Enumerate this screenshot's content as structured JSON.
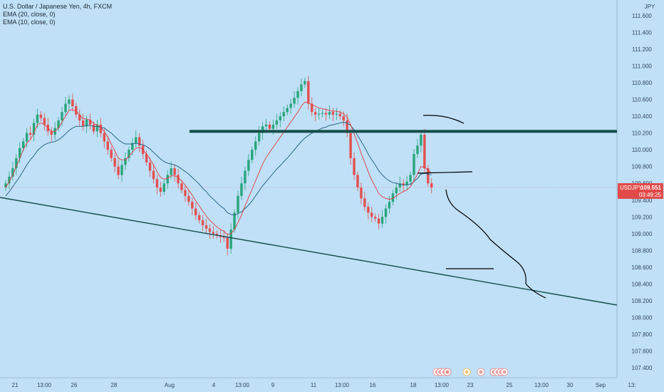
{
  "chart_data": {
    "type": "candlestick",
    "symbol_title": "U.S. Dollar / Japanese Yen, 4h, FXCM",
    "indicators": [
      "EMA (20, close, 0)",
      "EMA (10, close, 0)"
    ],
    "currency": "JPY",
    "ylim": [
      107.3,
      111.72
    ],
    "y_ticks": [
      "111.600",
      "111.400",
      "111.200",
      "111.000",
      "110.800",
      "110.600",
      "110.400",
      "110.200",
      "110.000",
      "109.800",
      "109.600",
      "109.400",
      "109.200",
      "109.000",
      "108.800",
      "108.600",
      "108.400",
      "108.200",
      "108.000",
      "107.800",
      "107.600",
      "107.400"
    ],
    "x_tick_labels": [
      "21",
      "13:00",
      "26",
      "28",
      "Aug",
      "4",
      "13:00",
      "9",
      "11",
      "13:00",
      "16",
      "18",
      "13:00",
      "23",
      "25",
      "13:00",
      "30",
      "Sep",
      "13:"
    ],
    "last_price": {
      "symbol": "USDJPY",
      "value": "109.551",
      "countdown": "03:49:25",
      "price": 109.551
    },
    "candles_close": [
      109.6,
      109.68,
      109.78,
      109.9,
      110.02,
      110.1,
      110.2,
      110.18,
      110.32,
      110.42,
      110.38,
      110.3,
      110.22,
      110.18,
      110.26,
      110.35,
      110.45,
      110.55,
      110.6,
      110.52,
      110.42,
      110.35,
      110.28,
      110.36,
      110.3,
      110.22,
      110.3,
      110.2,
      110.1,
      110.0,
      109.9,
      109.8,
      109.7,
      109.82,
      109.9,
      110.0,
      110.08,
      110.15,
      110.05,
      109.95,
      109.85,
      109.75,
      109.65,
      109.55,
      109.5,
      109.6,
      109.7,
      109.78,
      109.7,
      109.6,
      109.52,
      109.45,
      109.38,
      109.3,
      109.22,
      109.16,
      109.1,
      109.06,
      109.02,
      109.0,
      108.98,
      108.96,
      108.95,
      108.82,
      109.05,
      109.25,
      109.45,
      109.6,
      109.75,
      109.88,
      110.0,
      110.1,
      110.2,
      110.28,
      110.3,
      110.25,
      110.3,
      110.35,
      110.4,
      110.45,
      110.5,
      110.55,
      110.62,
      110.7,
      110.78,
      110.82,
      110.55,
      110.45,
      110.42,
      110.43,
      110.44,
      110.42,
      110.45,
      110.42,
      110.43,
      110.4,
      110.35,
      110.2,
      109.9,
      109.7,
      109.55,
      109.42,
      109.32,
      109.25,
      109.2,
      109.18,
      109.12,
      109.2,
      109.3,
      109.38,
      109.48,
      109.55,
      109.6,
      109.58,
      109.62,
      109.7,
      109.95,
      110.05,
      110.18,
      109.78,
      109.6,
      109.55
    ],
    "ema_fast": [
      109.55,
      109.62,
      109.7,
      109.8,
      109.9,
      110.0,
      110.08,
      110.12,
      110.2,
      110.3,
      110.32,
      110.3,
      110.26,
      110.22,
      110.22,
      110.26,
      110.33,
      110.4,
      110.47,
      110.48,
      110.46,
      110.42,
      110.37,
      110.37,
      110.35,
      110.31,
      110.3,
      110.27,
      110.22,
      110.15,
      110.07,
      109.99,
      109.9,
      109.88,
      109.88,
      109.92,
      109.97,
      110.02,
      110.03,
      110.0,
      109.95,
      109.89,
      109.82,
      109.74,
      109.67,
      109.65,
      109.66,
      109.69,
      109.69,
      109.67,
      109.63,
      109.58,
      109.52,
      109.46,
      109.39,
      109.33,
      109.27,
      109.21,
      109.16,
      109.12,
      109.08,
      109.05,
      109.03,
      108.99,
      109.0,
      109.05,
      109.13,
      109.22,
      109.33,
      109.43,
      109.53,
      109.63,
      109.73,
      109.83,
      109.91,
      109.97,
      110.03,
      110.09,
      110.15,
      110.21,
      110.27,
      110.33,
      110.39,
      110.45,
      110.52,
      110.57,
      110.56,
      110.54,
      110.52,
      110.5,
      110.49,
      110.48,
      110.47,
      110.46,
      110.46,
      110.45,
      110.43,
      110.39,
      110.3,
      110.19,
      110.08,
      109.96,
      109.85,
      109.74,
      109.64,
      109.56,
      109.48,
      109.44,
      109.42,
      109.41,
      109.42,
      109.45,
      109.48,
      109.5,
      109.52,
      109.56,
      109.63,
      109.71,
      109.8,
      109.79,
      109.76,
      109.72
    ],
    "ema_slow": [
      109.45,
      109.5,
      109.56,
      109.62,
      109.68,
      109.75,
      109.82,
      109.88,
      109.93,
      109.99,
      110.03,
      110.06,
      110.08,
      110.09,
      110.1,
      110.12,
      110.15,
      110.19,
      110.23,
      110.26,
      110.28,
      110.28,
      110.28,
      110.29,
      110.29,
      110.28,
      110.28,
      110.27,
      110.26,
      110.23,
      110.2,
      110.16,
      110.12,
      110.09,
      110.07,
      110.07,
      110.07,
      110.08,
      110.07,
      110.06,
      110.04,
      110.01,
      109.97,
      109.93,
      109.89,
      109.86,
      109.84,
      109.83,
      109.82,
      109.8,
      109.77,
      109.74,
      109.71,
      109.67,
      109.63,
      109.59,
      109.54,
      109.5,
      109.45,
      109.41,
      109.37,
      109.33,
      109.3,
      109.25,
      109.23,
      109.22,
      109.24,
      109.26,
      109.3,
      109.34,
      109.39,
      109.45,
      109.51,
      109.57,
      109.62,
      109.67,
      109.72,
      109.77,
      109.81,
      109.86,
      109.9,
      109.95,
      110.0,
      110.05,
      110.1,
      110.14,
      110.17,
      110.2,
      110.22,
      110.24,
      110.26,
      110.27,
      110.29,
      110.3,
      110.31,
      110.32,
      110.33,
      110.32,
      110.29,
      110.24,
      110.17,
      110.1,
      110.03,
      109.95,
      109.88,
      109.82,
      109.75,
      109.7,
      109.66,
      109.63,
      109.61,
      109.6,
      109.59,
      109.58,
      109.58,
      109.59,
      109.62,
      109.66,
      109.71,
      109.72,
      109.71,
      109.7
    ],
    "annotations": {
      "resistance_price": 110.22,
      "support_mini_price": 108.58
    }
  }
}
